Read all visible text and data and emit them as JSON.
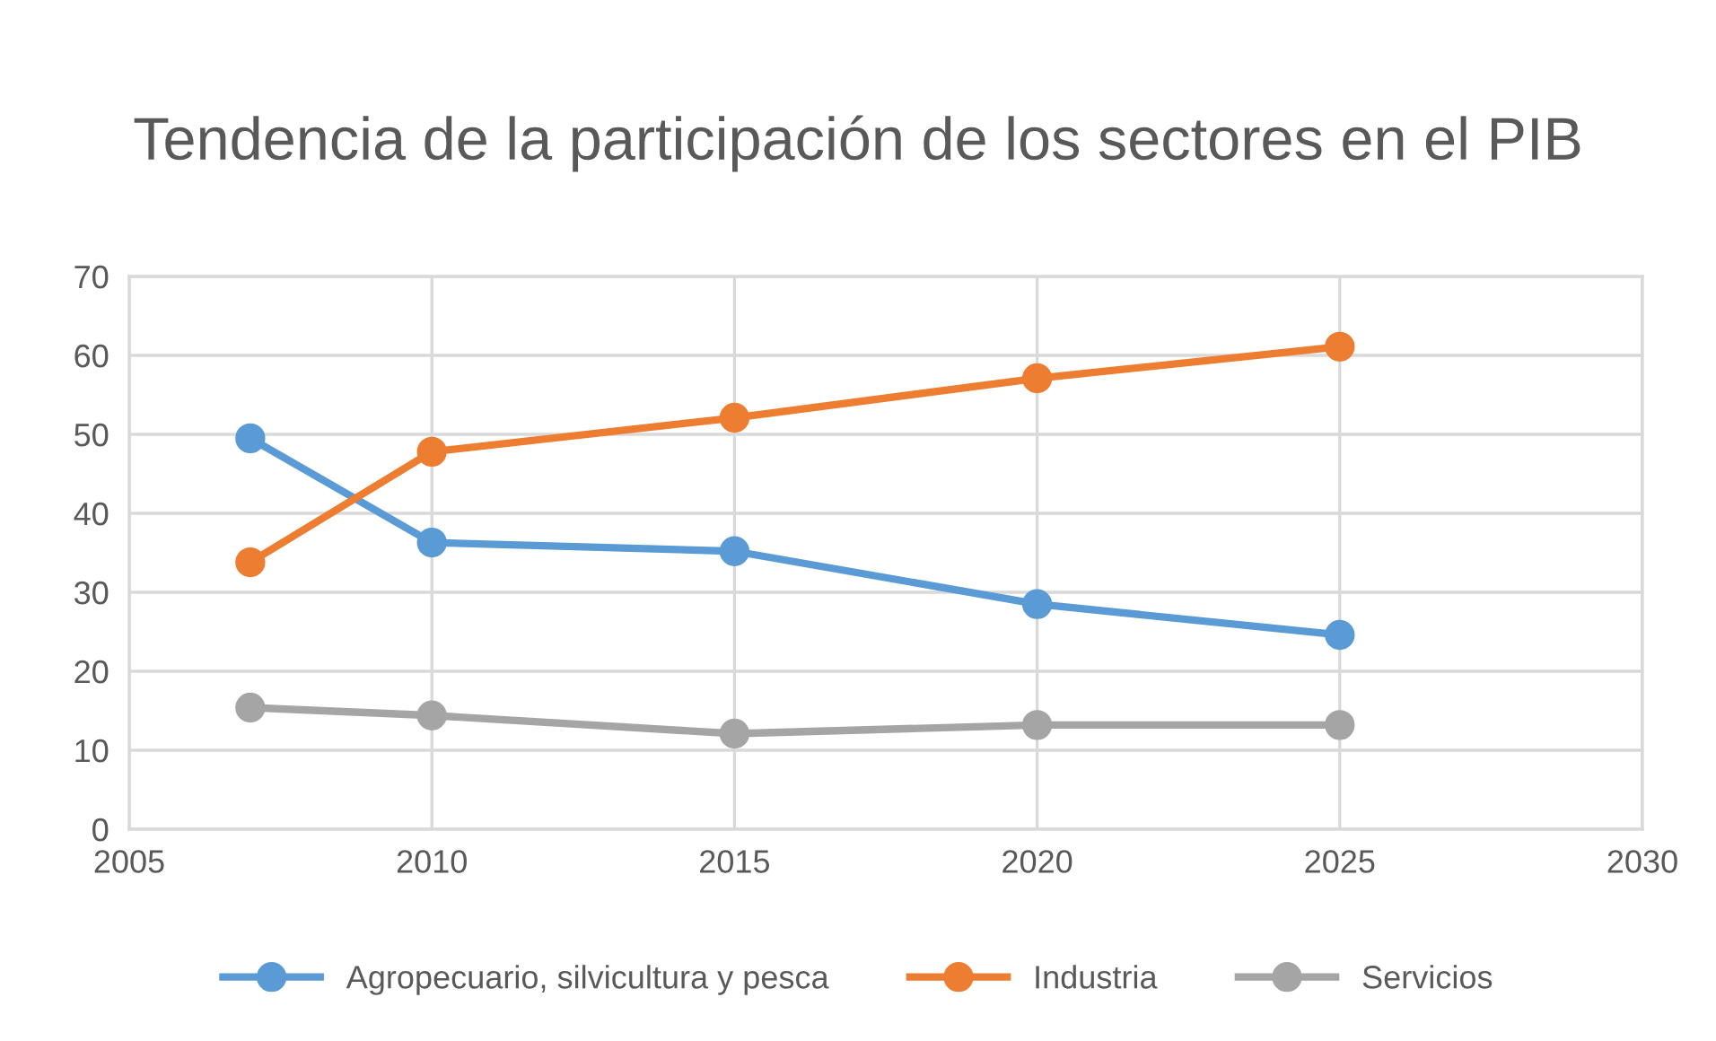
{
  "chart_data": {
    "type": "line",
    "title": "Tendencia de la participación de los sectores en el PIB",
    "x": [
      2007,
      2010,
      2015,
      2020,
      2025
    ],
    "series": [
      {
        "name": "Agropecuario, silvicultura y pesca",
        "color": "#5b9bd5",
        "values": [
          49.5,
          36.3,
          35.2,
          28.5,
          24.6
        ]
      },
      {
        "name": "Industria",
        "color": "#ed7d31",
        "values": [
          33.8,
          47.8,
          52.1,
          57.1,
          61.1
        ]
      },
      {
        "name": "Servicios",
        "color": "#a5a5a5",
        "values": [
          15.4,
          14.4,
          12.1,
          13.2,
          13.2
        ]
      }
    ],
    "xlim": [
      2005,
      2030
    ],
    "xticks": [
      2005,
      2010,
      2015,
      2020,
      2025,
      2030
    ],
    "ylim": [
      0,
      70
    ],
    "yticks": [
      0,
      10,
      20,
      30,
      40,
      50,
      60,
      70
    ],
    "grid": true,
    "legend": "bottom",
    "marker": "circle",
    "line_style": "solid"
  }
}
